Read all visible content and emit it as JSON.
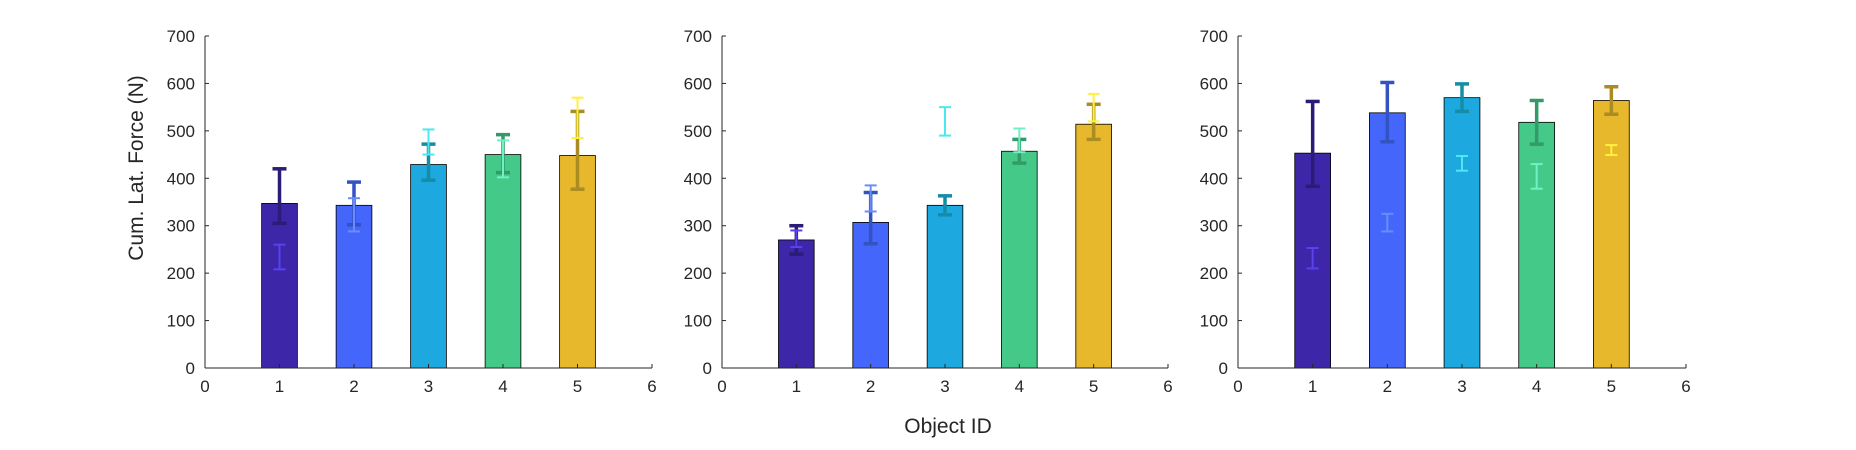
{
  "figure": {
    "ylabel": "Cum. Lat. Force (N)",
    "xlabel": "Object ID"
  },
  "chart_data": [
    {
      "type": "bar",
      "categories": [
        "1",
        "2",
        "3",
        "4",
        "5"
      ],
      "x_ticks": [
        "0",
        "1",
        "2",
        "3",
        "4",
        "5",
        "6"
      ],
      "y_ticks": [
        "0",
        "100",
        "200",
        "300",
        "400",
        "500",
        "600",
        "700"
      ],
      "xlim": [
        0,
        6
      ],
      "ylim": [
        0,
        700
      ],
      "ylabel": "Cum. Lat. Force (N)",
      "xlabel": "",
      "grid": false,
      "values": [
        347,
        343,
        429,
        450,
        448
      ],
      "bar_errors": [
        [
          305,
          420
        ],
        [
          302,
          392
        ],
        [
          396,
          472
        ],
        [
          412,
          492
        ],
        [
          377,
          541
        ]
      ],
      "secondary_errors": [
        [
          208,
          260
        ],
        [
          288,
          358
        ],
        [
          450,
          503
        ],
        [
          402,
          480
        ],
        [
          485,
          570
        ]
      ]
    },
    {
      "type": "bar",
      "categories": [
        "1",
        "2",
        "3",
        "4",
        "5"
      ],
      "x_ticks": [
        "0",
        "1",
        "2",
        "3",
        "4",
        "5",
        "6"
      ],
      "y_ticks": [
        "0",
        "100",
        "200",
        "300",
        "400",
        "500",
        "600",
        "700"
      ],
      "xlim": [
        0,
        6
      ],
      "ylim": [
        0,
        700
      ],
      "ylabel": "",
      "xlabel": "Object ID",
      "grid": false,
      "values": [
        270,
        307,
        343,
        457,
        514
      ],
      "bar_errors": [
        [
          240,
          300
        ],
        [
          262,
          370
        ],
        [
          323,
          363
        ],
        [
          432,
          482
        ],
        [
          482,
          556
        ]
      ],
      "secondary_errors": [
        [
          255,
          290
        ],
        [
          330,
          385
        ],
        [
          490,
          550
        ],
        [
          455,
          505
        ],
        [
          520,
          578
        ]
      ]
    },
    {
      "type": "bar",
      "categories": [
        "1",
        "2",
        "3",
        "4",
        "5"
      ],
      "x_ticks": [
        "0",
        "1",
        "2",
        "3",
        "4",
        "5",
        "6"
      ],
      "y_ticks": [
        "0",
        "100",
        "200",
        "300",
        "400",
        "500",
        "600",
        "700"
      ],
      "xlim": [
        0,
        6
      ],
      "ylim": [
        0,
        700
      ],
      "ylabel": "",
      "xlabel": "",
      "grid": false,
      "values": [
        453,
        538,
        570,
        518,
        564
      ],
      "bar_errors": [
        [
          383,
          562
        ],
        [
          477,
          602
        ],
        [
          541,
          599
        ],
        [
          472,
          564
        ],
        [
          535,
          593
        ]
      ],
      "secondary_errors": [
        [
          210,
          253
        ],
        [
          288,
          325
        ],
        [
          416,
          447
        ],
        [
          378,
          430
        ],
        [
          449,
          470
        ]
      ]
    }
  ],
  "colors": {
    "bar_fills": [
      "#3d27a8",
      "#4466fb",
      "#1da8e0",
      "#45c989",
      "#e7b82c"
    ],
    "error_bar_colors": [
      "#2b1c78",
      "#3353c3",
      "#158da6",
      "#329b67",
      "#aa8c22"
    ],
    "secondary_error_colors": [
      "#5941f0",
      "#6a8df9",
      "#4de8ee",
      "#71f0c6",
      "#fff23c"
    ],
    "axis": "#262626",
    "bar_edge": "#000000"
  }
}
